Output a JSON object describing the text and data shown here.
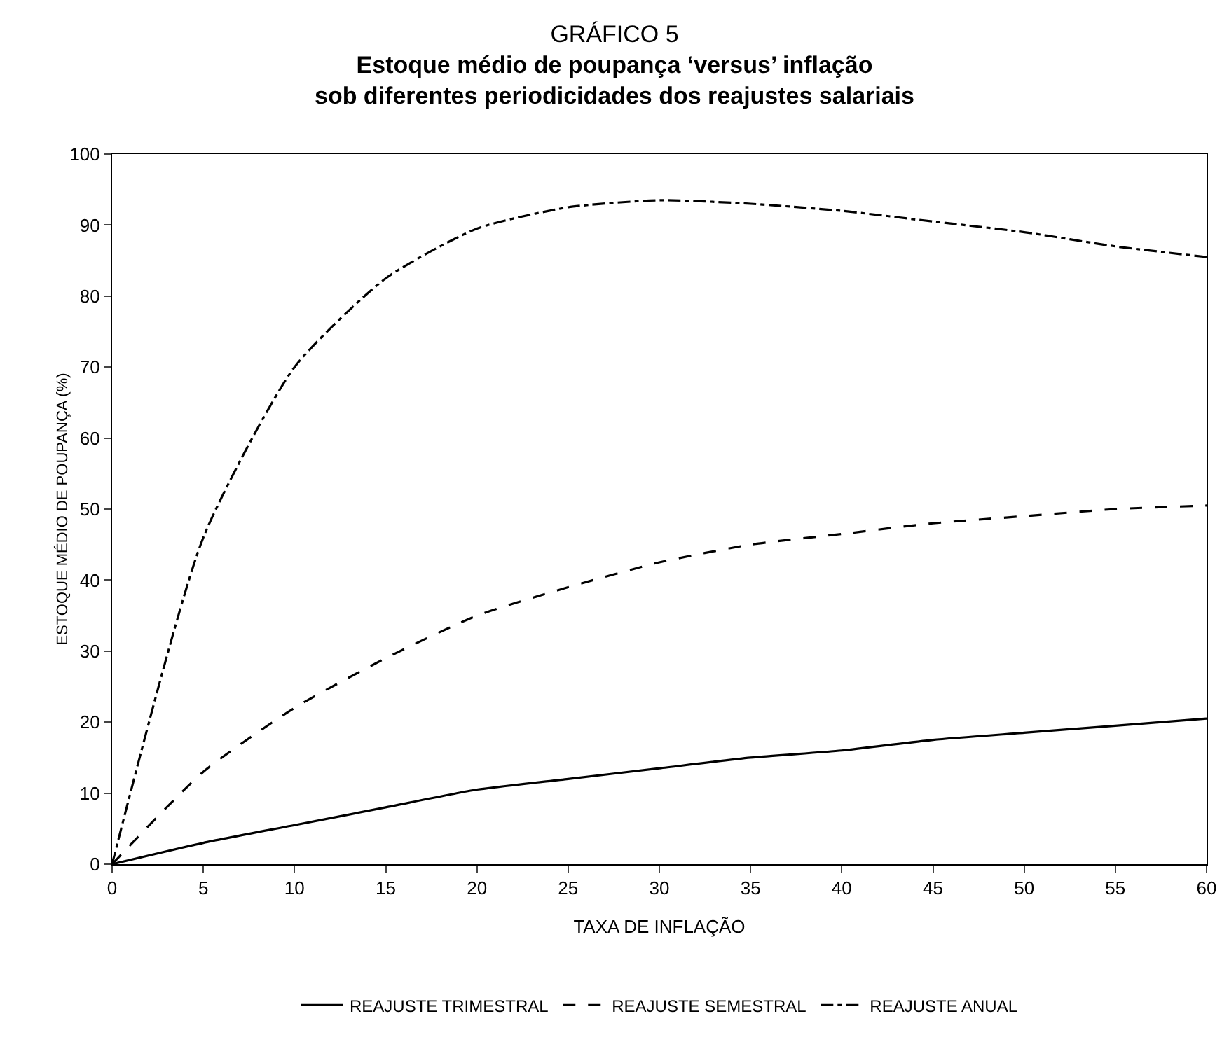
{
  "chart_data": {
    "type": "line",
    "title": "GRÁFICO 5",
    "subtitle": "Estoque médio de poupança ‘versus’ inflação\nsob diferentes periodicidades dos reajustes salariais",
    "xlabel": "TAXA DE INFLAÇÃO",
    "ylabel": "ESTOQUE MÉDIO DE POUPANÇA (%)",
    "x": [
      0,
      5,
      10,
      15,
      20,
      25,
      30,
      35,
      40,
      45,
      50,
      55,
      60
    ],
    "series": [
      {
        "name": "REAJUSTE TRIMESTRAL",
        "color": "#000000",
        "line_style": "solid",
        "values": [
          0,
          3,
          5.5,
          8,
          10.5,
          12,
          13.5,
          15,
          16,
          17.5,
          18.5,
          19.5,
          20.5
        ]
      },
      {
        "name": "REAJUSTE SEMESTRAL",
        "color": "#000000",
        "line_style": "dashed",
        "values": [
          0,
          13,
          22,
          29,
          35,
          39,
          42.5,
          45,
          46.5,
          48,
          49,
          50,
          50.5
        ]
      },
      {
        "name": "REAJUSTE ANUAL",
        "color": "#000000",
        "line_style": "dashdot",
        "values": [
          0,
          46,
          70,
          82.5,
          89.5,
          92.5,
          93.5,
          93,
          92,
          90.5,
          89,
          87,
          85.5
        ]
      }
    ],
    "xlim": [
      0,
      60
    ],
    "xticks": [
      0,
      5,
      10,
      15,
      20,
      25,
      30,
      35,
      40,
      45,
      50,
      55,
      60
    ],
    "ylim": [
      0,
      100
    ],
    "yticks": [
      0,
      10,
      20,
      30,
      40,
      50,
      60,
      70,
      80,
      90,
      100
    ],
    "grid": false,
    "legend": "bottom"
  }
}
